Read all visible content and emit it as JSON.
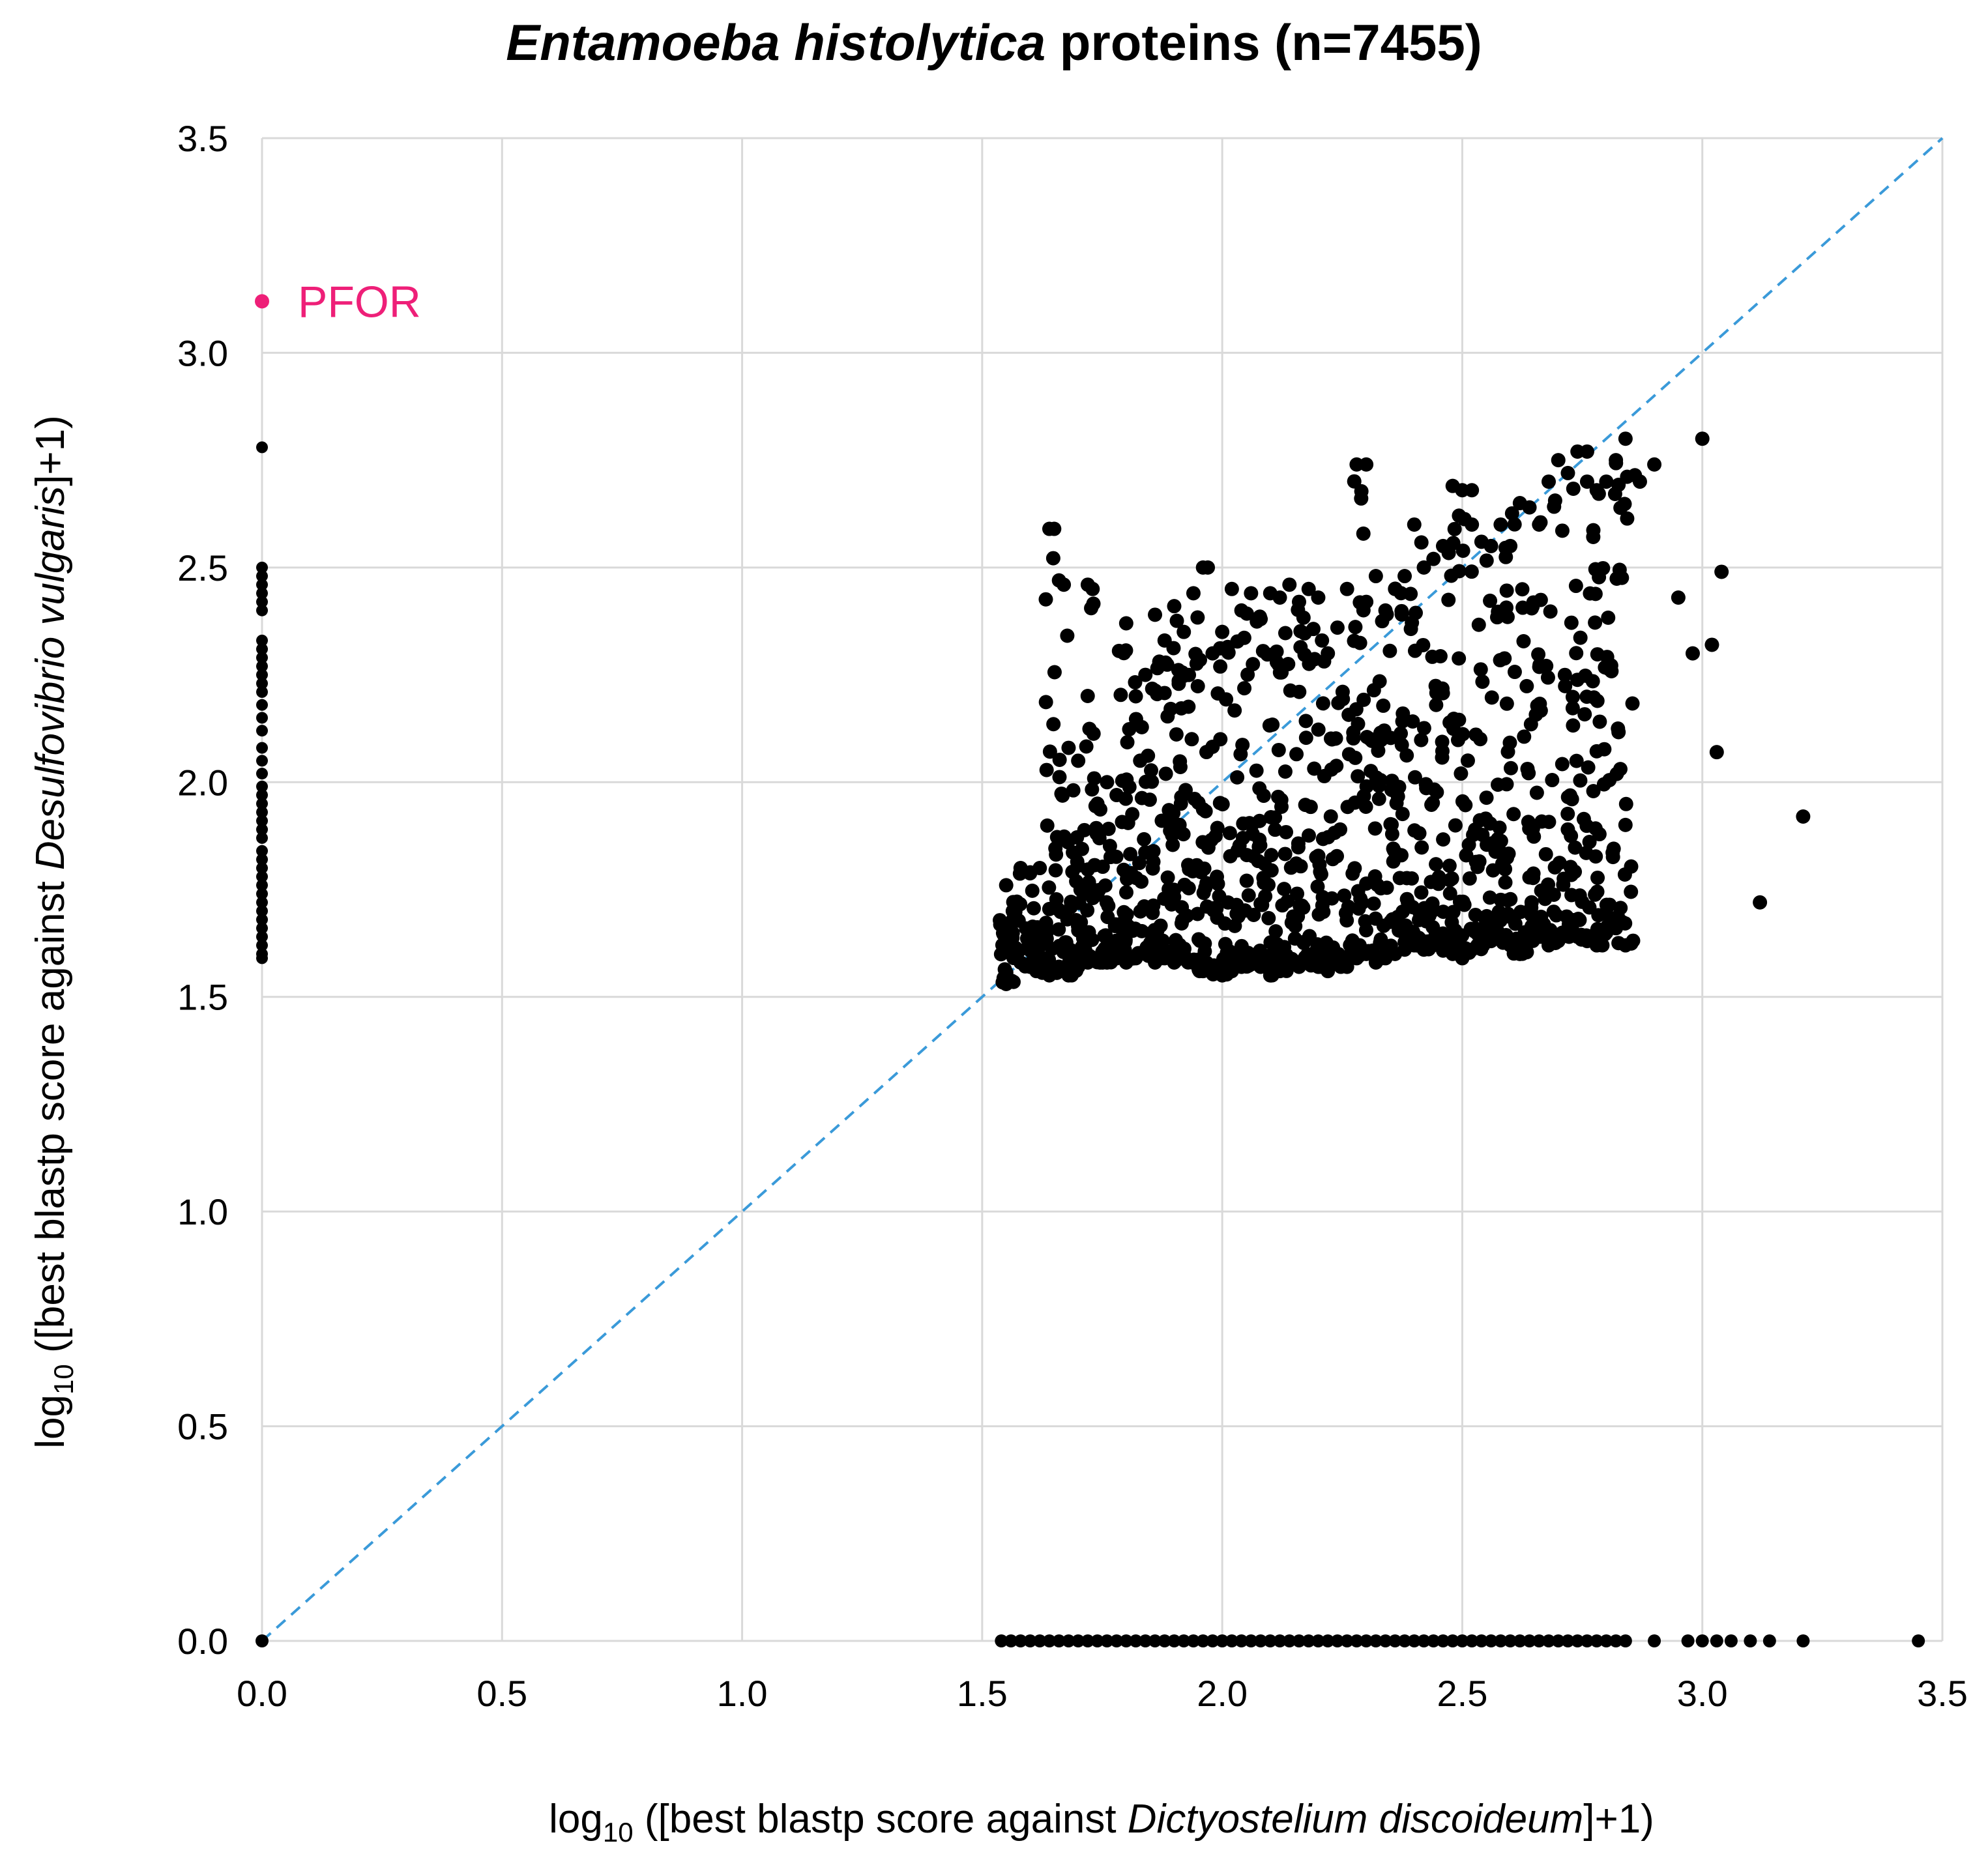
{
  "chart_data": {
    "type": "scatter",
    "title_italic": "Entamoeba histolytica",
    "title_rest": " proteins (n=7455)",
    "xlabel": {
      "prefix": "log",
      "subscript": "10",
      "pre": " ([best blastp score against ",
      "italic": "Dictyostelium discoideum",
      "post": "]+1)"
    },
    "ylabel": {
      "prefix": "log",
      "subscript": "10",
      "pre": " ([best blastp score against ",
      "italic": "Desulfovibrio vulgaris",
      "post": "]+1)"
    },
    "xlim": [
      0,
      3.5
    ],
    "ylim": [
      0,
      3.5
    ],
    "xticks": [
      "0.0",
      "0.5",
      "1.0",
      "1.5",
      "2.0",
      "2.5",
      "3.0",
      "3.5"
    ],
    "yticks": [
      "0.0",
      "0.5",
      "1.0",
      "1.5",
      "2.0",
      "2.5",
      "3.0",
      "3.5"
    ],
    "grid": true,
    "point_color": "#000000",
    "diagonal": {
      "x": [
        0,
        3.5
      ],
      "y": [
        0,
        3.5
      ],
      "color": "#3a9ad9",
      "style": "dashed"
    },
    "highlight": {
      "label": "PFOR",
      "x": 0.0,
      "y": 3.12,
      "color": "#ee1f78"
    },
    "series": [
      {
        "name": "zero_x_column",
        "x_value": 0.0,
        "y_values": [
          2.78,
          2.5,
          2.48,
          2.46,
          2.44,
          2.42,
          2.4,
          2.33,
          2.31,
          2.29,
          2.27,
          2.25,
          2.23,
          2.21,
          2.18,
          2.15,
          2.12,
          2.08,
          2.05,
          2.02,
          1.99,
          1.97,
          1.95,
          1.93,
          1.91,
          1.89,
          1.87,
          1.84,
          1.82,
          1.8,
          1.78,
          1.76,
          1.74,
          1.72,
          1.7,
          1.68,
          1.66,
          1.64,
          1.62,
          1.6,
          1.59
        ]
      },
      {
        "name": "zero_y_row",
        "y_value": 0.0,
        "x_values": [
          0.0,
          1.54,
          1.56,
          1.58,
          1.6,
          1.62,
          1.64,
          1.66,
          1.68,
          1.7,
          1.72,
          1.74,
          1.76,
          1.78,
          1.8,
          1.82,
          1.84,
          1.86,
          1.88,
          1.9,
          1.92,
          1.94,
          1.96,
          1.98,
          2.0,
          2.02,
          2.04,
          2.06,
          2.08,
          2.1,
          2.12,
          2.14,
          2.16,
          2.18,
          2.2,
          2.22,
          2.24,
          2.26,
          2.28,
          2.3,
          2.32,
          2.34,
          2.36,
          2.38,
          2.4,
          2.42,
          2.44,
          2.46,
          2.48,
          2.5,
          2.52,
          2.54,
          2.56,
          2.58,
          2.6,
          2.62,
          2.64,
          2.66,
          2.68,
          2.7,
          2.72,
          2.74,
          2.76,
          2.78,
          2.8,
          2.82,
          2.84,
          2.9,
          2.97,
          3.0,
          3.03,
          3.06,
          3.1,
          3.14,
          3.21,
          3.45
        ]
      },
      {
        "name": "cluster_min_y",
        "x": [
          1.55,
          1.58,
          1.6,
          1.62,
          1.64,
          1.66,
          1.68,
          1.7,
          1.72,
          1.74,
          1.76,
          1.78,
          1.8,
          1.82,
          1.84,
          1.86,
          1.88,
          1.9,
          1.92,
          1.94,
          1.96,
          1.98,
          2.0,
          2.02,
          2.04,
          2.06,
          2.08,
          2.1,
          2.12,
          2.14,
          2.16,
          2.18,
          2.2,
          2.22,
          2.24,
          2.26,
          2.28,
          2.3,
          2.32,
          2.34,
          2.36,
          2.38,
          2.4,
          2.42,
          2.44,
          2.46,
          2.48,
          2.5,
          2.52,
          2.54,
          2.56,
          2.58,
          2.6,
          2.62,
          2.64,
          2.66,
          2.68,
          2.7,
          2.72,
          2.74,
          2.76,
          2.78,
          2.8,
          2.82,
          2.84
        ],
        "y_min": [
          1.53,
          1.58,
          1.57,
          1.56,
          1.55,
          1.56,
          1.55,
          1.57,
          1.58,
          1.59,
          1.58,
          1.59,
          1.58,
          1.59,
          1.6,
          1.58,
          1.59,
          1.58,
          1.6,
          1.58,
          1.56,
          1.57,
          1.55,
          1.56,
          1.57,
          1.58,
          1.57,
          1.55,
          1.56,
          1.58,
          1.57,
          1.58,
          1.57,
          1.56,
          1.58,
          1.57,
          1.59,
          1.6,
          1.58,
          1.59,
          1.6,
          1.61,
          1.62,
          1.61,
          1.63,
          1.62,
          1.6,
          1.59,
          1.61,
          1.62,
          1.63,
          1.64,
          1.62,
          1.6,
          1.63,
          1.64,
          1.62,
          1.63,
          1.65,
          1.64,
          1.63,
          1.62,
          1.65,
          1.66,
          1.62
        ]
      },
      {
        "name": "cluster_max_y",
        "x": [
          1.55,
          1.58,
          1.6,
          1.62,
          1.64,
          1.66,
          1.68,
          1.7,
          1.72,
          1.74,
          1.76,
          1.78,
          1.8,
          1.82,
          1.84,
          1.86,
          1.88,
          1.9,
          1.92,
          1.94,
          1.96,
          1.98,
          2.0,
          2.02,
          2.04,
          2.06,
          2.08,
          2.1,
          2.12,
          2.14,
          2.16,
          2.18,
          2.2,
          2.22,
          2.24,
          2.26,
          2.28,
          2.3,
          2.32,
          2.34,
          2.36,
          2.38,
          2.4,
          2.42,
          2.44,
          2.46,
          2.48,
          2.5,
          2.52,
          2.54,
          2.56,
          2.58,
          2.6,
          2.62,
          2.64,
          2.66,
          2.68,
          2.7,
          2.72,
          2.74,
          2.76,
          2.78,
          2.8,
          2.82,
          2.84
        ],
        "y_max": [
          1.76,
          1.8,
          1.79,
          1.8,
          2.59,
          2.47,
          2.08,
          2.05,
          2.46,
          1.95,
          2.0,
          1.97,
          2.37,
          2.2,
          2.25,
          2.39,
          2.33,
          2.41,
          2.35,
          2.44,
          2.5,
          2.3,
          2.35,
          2.45,
          2.4,
          2.44,
          2.38,
          2.44,
          2.43,
          2.46,
          2.42,
          2.45,
          2.43,
          2.3,
          2.36,
          2.45,
          2.74,
          2.42,
          2.48,
          2.4,
          2.45,
          2.48,
          2.6,
          2.5,
          2.52,
          2.55,
          2.69,
          2.68,
          2.6,
          2.56,
          2.55,
          2.6,
          2.55,
          2.65,
          2.64,
          2.6,
          2.7,
          2.75,
          2.72,
          2.77,
          2.7,
          2.68,
          2.7,
          2.75,
          2.8
        ]
      },
      {
        "name": "outliers",
        "x": [
          1.65,
          1.67,
          1.73,
          1.97,
          2.3,
          2.52,
          2.76,
          2.87,
          2.9,
          2.95,
          2.98,
          3.0,
          3.02,
          3.03,
          3.04,
          3.12,
          3.21
        ],
        "y": [
          2.59,
          2.46,
          2.45,
          2.5,
          2.74,
          2.68,
          2.77,
          2.7,
          2.74,
          2.43,
          2.3,
          2.8,
          2.32,
          2.07,
          2.49,
          1.72,
          1.92
        ]
      }
    ]
  }
}
